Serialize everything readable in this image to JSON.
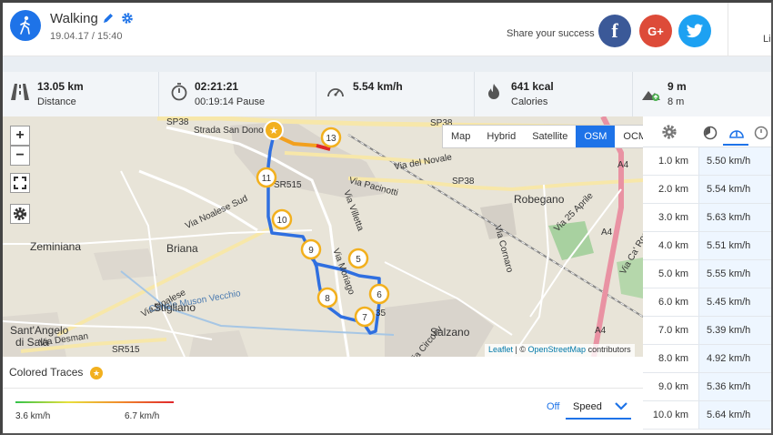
{
  "header": {
    "title": "Walking",
    "date": "19.04.17 / 15:40",
    "share_text": "Share your success",
    "like_text": "Lik",
    "social": {
      "facebook": "f",
      "googleplus": "G+",
      "twitter": "twitter-icon"
    }
  },
  "stats": [
    {
      "icon": "road-icon",
      "value": "13.05 km",
      "label": "Distance"
    },
    {
      "icon": "stopwatch-icon",
      "value": "02:21:21",
      "label": "00:19:14 Pause"
    },
    {
      "icon": "speedometer-icon",
      "value": "5.54 km/h",
      "label": ""
    },
    {
      "icon": "flame-icon",
      "value": "641 kcal",
      "label": "Calories"
    },
    {
      "icon": "elevation-icon",
      "value": "9 m",
      "label": "8 m"
    }
  ],
  "map": {
    "layers": [
      "Map",
      "Hybrid",
      "Satellite",
      "OSM",
      "OCM"
    ],
    "active_layer": "OSM",
    "zoom_in": "+",
    "zoom_out": "−",
    "attribution": {
      "leaflet": "Leaflet",
      "sep": " | © ",
      "osm": "OpenStreetMap",
      "contrib": " contributors"
    },
    "places": {
      "zeminiana": "Zeminiana",
      "briana": "Briana",
      "stigliano": "Stigliano",
      "santangelo": "Sant'Angelo",
      "disala": "di Sala",
      "salzano": "Salzano",
      "robegano": "Robegano",
      "road_sp38a": "SP38",
      "road_sp38b": "SP38",
      "road_sp38c": "SP38",
      "road_sr515a": "SR515",
      "road_sr515b": "SR515",
      "road_a4a": "A4",
      "road_a4b": "A4",
      "road_a4c": "A4",
      "strada_san_dono": "Strada San Dono",
      "via_noalese_sud": "Via Noalese Sud",
      "via_noalese": "Via Noalese",
      "via_del_novale": "Via del Novale",
      "via_paccinotti": "Via Pacinotti",
      "via_villetta": "Via Villetta",
      "via_moriago": "Via Moriago",
      "via_desman": "Via Desman",
      "via_25_aprile": "Via 25 Aprile",
      "via_ca_rossa": "Via Ca' Rossa",
      "via_cornaro": "Via Cornaro",
      "canale_vecchio": "Canale Muson Vecchio",
      "via_circonv": "Via Circonv",
      "road_35": "35"
    },
    "markers": [
      "13",
      "11",
      "10",
      "9",
      "5",
      "8",
      "6",
      "7"
    ]
  },
  "splits": {
    "rows": [
      {
        "distance": "1.0 km",
        "speed": "5.50 km/h"
      },
      {
        "distance": "2.0 km",
        "speed": "5.54 km/h"
      },
      {
        "distance": "3.0 km",
        "speed": "5.63 km/h"
      },
      {
        "distance": "4.0 km",
        "speed": "5.51 km/h"
      },
      {
        "distance": "5.0 km",
        "speed": "5.55 km/h"
      },
      {
        "distance": "6.0 km",
        "speed": "5.45 km/h"
      },
      {
        "distance": "7.0 km",
        "speed": "5.39 km/h"
      },
      {
        "distance": "8.0 km",
        "speed": "4.92 km/h"
      },
      {
        "distance": "9.0 km",
        "speed": "5.36 km/h"
      },
      {
        "distance": "10.0 km",
        "speed": "5.64 km/h"
      }
    ]
  },
  "bottom": {
    "colored_traces": "Colored Traces",
    "legend_min": "3.6 km/h",
    "legend_max": "6.7 km/h",
    "off": "Off",
    "speed_option": "Speed"
  },
  "colors": {
    "accent": "#1e73e8",
    "route": "#2f6fe0",
    "marker": "#f2b01e",
    "facebook": "#3b5998",
    "googleplus": "#dd4b39",
    "twitter": "#1da1f2"
  }
}
